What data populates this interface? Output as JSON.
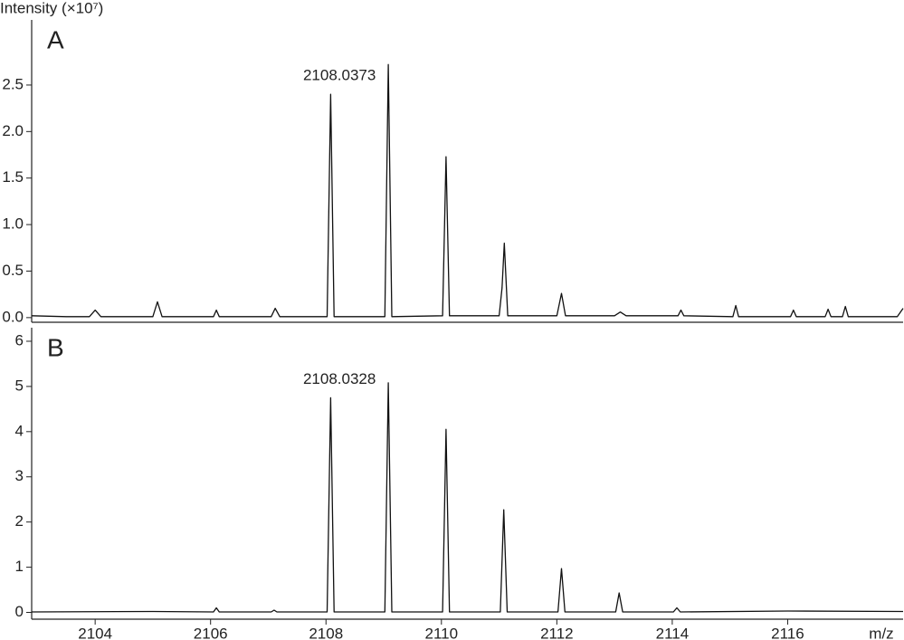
{
  "chart_data": [
    {
      "type": "line",
      "panel_label": "A",
      "ylabel": "Intensity (×10⁷)",
      "annotation": "2108.0373",
      "color": "#111111",
      "xlim": [
        2102.9,
        2118.0
      ],
      "ylim": [
        -0.05,
        3.2
      ],
      "yticks": [
        {
          "value": 0,
          "label": "0.0"
        },
        {
          "value": 0.5,
          "label": "0.5"
        },
        {
          "value": 1,
          "label": "1.0"
        },
        {
          "value": 1.5,
          "label": "1.5"
        },
        {
          "value": 2,
          "label": "2.0"
        },
        {
          "value": 2.5,
          "label": "2.5"
        }
      ],
      "x": [
        2102.9,
        2103.5,
        2103.9,
        2104.0,
        2104.1,
        2105.0,
        2105.08,
        2105.16,
        2106.05,
        2106.1,
        2106.15,
        2107.05,
        2107.12,
        2107.2,
        2108.02,
        2108.08,
        2108.14,
        2109.02,
        2109.08,
        2109.14,
        2110.02,
        2110.08,
        2110.14,
        2111.0,
        2111.05,
        2111.09,
        2111.15,
        2112.0,
        2112.08,
        2112.15,
        2113.0,
        2113.1,
        2113.2,
        2114.1,
        2114.15,
        2114.2,
        2115.05,
        2115.1,
        2115.15,
        2116.05,
        2116.1,
        2116.15,
        2116.65,
        2116.7,
        2116.75,
        2116.95,
        2117.0,
        2117.05,
        2117.9,
        2118.0
      ],
      "values": [
        0.02,
        0.01,
        0.01,
        0.08,
        0.01,
        0.01,
        0.17,
        0.01,
        0.01,
        0.08,
        0.01,
        0.01,
        0.1,
        0.01,
        0.01,
        2.4,
        0.01,
        0.01,
        2.72,
        0.01,
        0.02,
        1.73,
        0.02,
        0.02,
        0.32,
        0.8,
        0.02,
        0.02,
        0.26,
        0.02,
        0.02,
        0.06,
        0.02,
        0.02,
        0.08,
        0.02,
        0.01,
        0.13,
        0.01,
        0.01,
        0.08,
        0.01,
        0.01,
        0.09,
        0.01,
        0.01,
        0.12,
        0.01,
        0.01,
        0.1
      ]
    },
    {
      "type": "line",
      "panel_label": "B",
      "xlabel": "m/z",
      "annotation": "2108.0328",
      "color": "#111111",
      "xlim": [
        2102.9,
        2118.0
      ],
      "ylim": [
        -0.15,
        6.3
      ],
      "yticks": [
        0,
        1,
        2,
        3,
        4,
        5,
        6
      ],
      "xticks": [
        2104,
        2106,
        2108,
        2110,
        2112,
        2114,
        2116
      ],
      "x": [
        2102.9,
        2105.0,
        2106.05,
        2106.1,
        2106.15,
        2107.05,
        2107.1,
        2107.15,
        2108.02,
        2108.08,
        2108.14,
        2109.02,
        2109.08,
        2109.14,
        2110.02,
        2110.08,
        2110.14,
        2111.02,
        2111.08,
        2111.14,
        2112.02,
        2112.08,
        2112.14,
        2113.02,
        2113.08,
        2113.14,
        2114.02,
        2114.08,
        2114.14,
        2116.0,
        2118.0
      ],
      "values": [
        0.01,
        0.02,
        0.01,
        0.1,
        0.01,
        0.01,
        0.05,
        0.01,
        0.01,
        4.75,
        0.01,
        0.01,
        5.08,
        0.01,
        0.01,
        4.05,
        0.01,
        0.01,
        2.27,
        0.01,
        0.01,
        0.97,
        0.01,
        0.01,
        0.43,
        0.01,
        0.01,
        0.1,
        0.01,
        0.03,
        0.02
      ]
    }
  ]
}
